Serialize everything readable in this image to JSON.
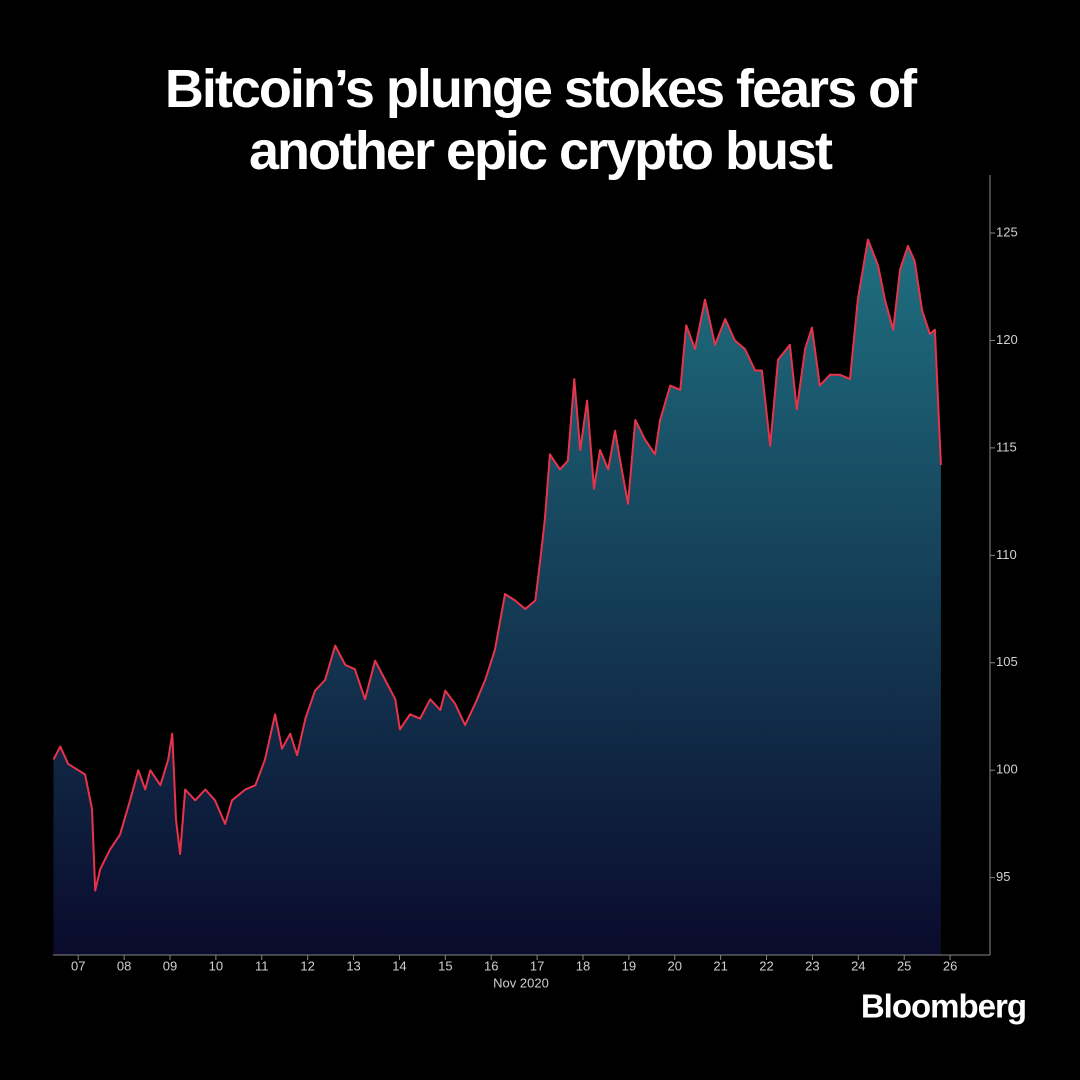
{
  "chart_data": {
    "type": "area",
    "title": "Bitcoin’s plunge stokes fears of another epic crypto bust",
    "xlabel": "Nov 2020",
    "logo": "Bloomberg",
    "color": "#e8334a",
    "fill_colors": [
      "#1f6f80",
      "#0a0a2c"
    ],
    "xlim": [
      6.45,
      26.87
    ],
    "ylim": [
      91.4,
      127.7
    ],
    "xticks": [
      {
        "value": 7,
        "label": "07"
      },
      {
        "value": 8,
        "label": "08"
      },
      {
        "value": 9,
        "label": "09"
      },
      10,
      11,
      12,
      13,
      14,
      15,
      16,
      17,
      18,
      19,
      20,
      21,
      22,
      23,
      24,
      25,
      26
    ],
    "yticks": [
      95,
      100,
      105,
      110,
      115,
      120,
      125
    ],
    "x": [
      6.46,
      6.61,
      6.78,
      7.0,
      7.15,
      7.3,
      7.37,
      7.48,
      7.69,
      7.91,
      8.13,
      8.31,
      8.46,
      8.57,
      8.79,
      8.96,
      9.05,
      9.13,
      9.22,
      9.33,
      9.55,
      9.77,
      9.98,
      10.2,
      10.35,
      10.64,
      10.86,
      11.07,
      11.29,
      11.44,
      11.62,
      11.77,
      11.95,
      12.16,
      12.38,
      12.6,
      12.82,
      13.03,
      13.25,
      13.47,
      13.69,
      13.91,
      14.01,
      14.23,
      14.45,
      14.67,
      14.89,
      15.0,
      15.21,
      15.43,
      15.65,
      15.87,
      16.08,
      16.3,
      16.52,
      16.74,
      16.96,
      17.07,
      17.17,
      17.28,
      17.5,
      17.67,
      17.81,
      17.94,
      18.09,
      18.24,
      18.37,
      18.55,
      18.7,
      18.81,
      18.98,
      19.14,
      19.35,
      19.57,
      19.68,
      19.9,
      20.12,
      20.25,
      20.44,
      20.66,
      20.88,
      21.1,
      21.31,
      21.53,
      21.75,
      21.9,
      22.08,
      22.25,
      22.51,
      22.66,
      22.84,
      22.99,
      23.16,
      23.38,
      23.6,
      23.82,
      23.99,
      24.21,
      24.43,
      24.58,
      24.76,
      24.91,
      25.08,
      25.23,
      25.39,
      25.56,
      25.67,
      25.8
    ],
    "values": [
      100.5,
      101.1,
      100.3,
      100.0,
      99.8,
      98.2,
      94.4,
      95.4,
      96.3,
      97.0,
      98.6,
      100.0,
      99.1,
      100.0,
      99.3,
      100.5,
      101.7,
      97.7,
      96.1,
      99.1,
      98.6,
      99.1,
      98.6,
      97.5,
      98.6,
      99.1,
      99.3,
      100.5,
      102.6,
      101.0,
      101.7,
      100.7,
      102.4,
      103.7,
      104.2,
      105.8,
      104.9,
      104.7,
      103.3,
      105.1,
      104.2,
      103.3,
      101.9,
      102.6,
      102.4,
      103.3,
      102.8,
      103.7,
      103.1,
      102.1,
      103.1,
      104.2,
      105.6,
      108.2,
      107.9,
      107.5,
      107.9,
      109.8,
      111.7,
      114.7,
      114.0,
      114.4,
      118.2,
      114.9,
      117.2,
      113.1,
      114.9,
      114.0,
      115.8,
      114.4,
      112.4,
      116.3,
      115.4,
      114.7,
      116.3,
      117.9,
      117.7,
      120.7,
      119.6,
      121.9,
      119.8,
      121.0,
      120.0,
      119.6,
      118.6,
      118.6,
      115.1,
      119.1,
      119.8,
      116.8,
      119.6,
      120.6,
      117.9,
      118.4,
      118.4,
      118.2,
      121.9,
      124.7,
      123.5,
      121.9,
      120.5,
      123.3,
      124.4,
      123.7,
      121.4,
      120.3,
      120.5,
      114.2
    ]
  }
}
